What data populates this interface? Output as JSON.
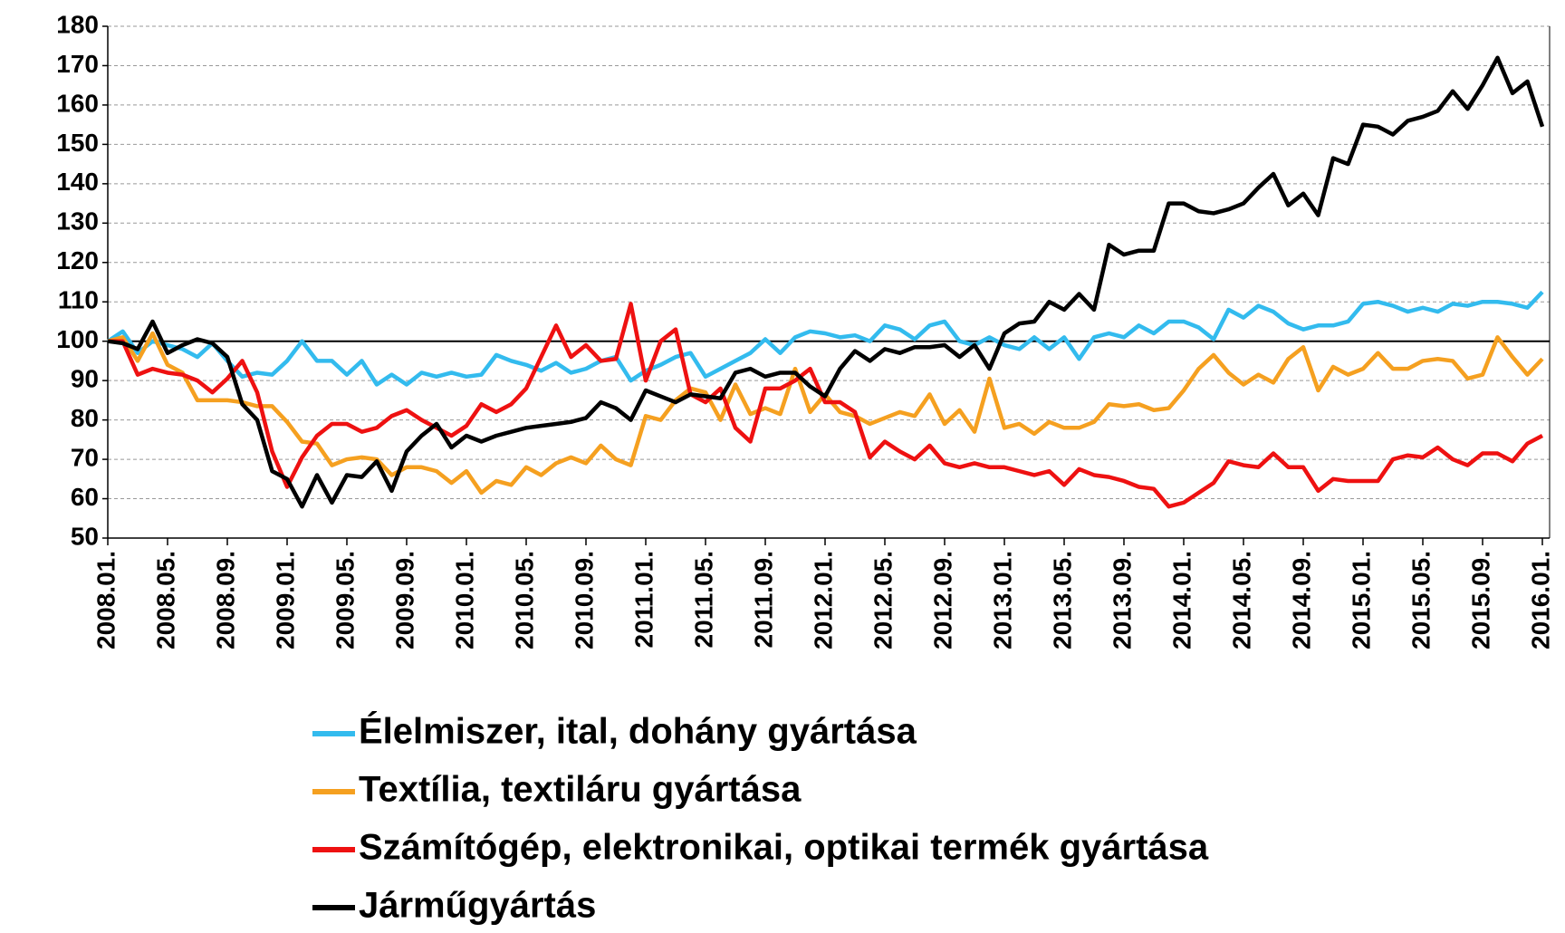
{
  "chart_data": {
    "type": "line",
    "categories": [
      "2008.01.",
      null,
      null,
      null,
      "2008.05.",
      null,
      null,
      null,
      "2008.09.",
      null,
      null,
      null,
      "2009.01.",
      null,
      null,
      null,
      "2009.05.",
      null,
      null,
      null,
      "2009.09.",
      null,
      null,
      null,
      "2010.01.",
      null,
      null,
      null,
      "2010.05.",
      null,
      null,
      null,
      "2010.09.",
      null,
      null,
      null,
      "2011.01.",
      null,
      null,
      null,
      "2011.05.",
      null,
      null,
      null,
      "2011.09.",
      null,
      null,
      null,
      "2012.01.",
      null,
      null,
      null,
      "2012.05.",
      null,
      null,
      null,
      "2012.09.",
      null,
      null,
      null,
      "2013.01.",
      null,
      null,
      null,
      "2013.05.",
      null,
      null,
      null,
      "2013.09.",
      null,
      null,
      null,
      "2014.01.",
      null,
      null,
      null,
      "2014.05.",
      null,
      null,
      null,
      "2014.09.",
      null,
      null,
      null,
      "2015.01.",
      null,
      null,
      null,
      "2015.05.",
      null,
      null,
      null,
      "2015.09.",
      null,
      null,
      null,
      "2016.01."
    ],
    "series": [
      {
        "name": "Élelmiszer, ital, dohány gyártása",
        "color": "#33bbee",
        "values": [
          100,
          102.5,
          97,
          100,
          99,
          98,
          96,
          99.5,
          95,
          91,
          92,
          91.5,
          95,
          100,
          95,
          95,
          91.5,
          95,
          89,
          91.5,
          89,
          92,
          91,
          92,
          91,
          91.5,
          96.5,
          95,
          94,
          92.5,
          94.5,
          92,
          93,
          95,
          96,
          90,
          92.5,
          94,
          96,
          97,
          91,
          93,
          95,
          97,
          100.5,
          97,
          101,
          102.5,
          102,
          101,
          101.5,
          100,
          104,
          103,
          100.5,
          104,
          105,
          100,
          99,
          101,
          99,
          98,
          101,
          98,
          101,
          95.5,
          101,
          102,
          101,
          104,
          102,
          105,
          105,
          103.5,
          100.5,
          108,
          106,
          109,
          107.5,
          104.5,
          103,
          104,
          104,
          105,
          109.5,
          110,
          109,
          107.5,
          108.5,
          107.5,
          109.5,
          109,
          110,
          110,
          109.5,
          108.5,
          112.5
        ]
      },
      {
        "name": "Textília, textiláru gyártása",
        "color": "#f5a020",
        "values": [
          100,
          101,
          95,
          102,
          94,
          92,
          85,
          85,
          85,
          84.5,
          83.5,
          83.5,
          79.5,
          74.5,
          74,
          68.5,
          70,
          70.5,
          70,
          66,
          68,
          68,
          67,
          64,
          67,
          61.5,
          64.5,
          63.5,
          68,
          66,
          69,
          70.5,
          69,
          73.5,
          70,
          68.5,
          81,
          80,
          85,
          88,
          87,
          80,
          89,
          81.5,
          83,
          81.5,
          93,
          82,
          86.5,
          82,
          81,
          79,
          80.5,
          82,
          81,
          86.5,
          79,
          82.5,
          77,
          90.5,
          78,
          79,
          76.5,
          79.5,
          78,
          78,
          79.5,
          84,
          83.5,
          84,
          82.5,
          83,
          87.5,
          93,
          96.5,
          92,
          89,
          91.5,
          89.5,
          95.5,
          98.5,
          87.5,
          93.5,
          91.5,
          93,
          97,
          93,
          93,
          95,
          95.5,
          95,
          90.5,
          91.5,
          101,
          96,
          91.5,
          95.5
        ]
      },
      {
        "name": "Számítógép, elektronikai, optikai termék gyártása",
        "color": "#ee1111",
        "values": [
          100,
          100,
          91.5,
          93,
          92,
          91.5,
          90,
          87,
          90.5,
          95,
          87,
          72,
          63,
          70.5,
          76,
          79,
          79,
          77,
          78,
          81,
          82.5,
          80,
          78,
          76,
          78.5,
          84,
          82,
          84,
          88,
          96,
          104,
          96,
          99,
          95,
          95.5,
          109.5,
          90,
          100,
          103,
          86.5,
          84.5,
          88,
          78,
          74.5,
          88,
          88,
          90,
          93,
          84.5,
          84.5,
          82,
          70.5,
          74.5,
          72,
          70,
          73.5,
          69,
          68,
          69,
          68,
          68,
          67,
          66,
          67,
          63.5,
          67.5,
          66,
          65.5,
          64.5,
          63,
          62.5,
          58,
          59,
          61.5,
          64,
          69.5,
          68.5,
          68,
          71.5,
          68,
          68,
          62,
          65,
          64.5,
          64.5,
          64.5,
          70,
          71,
          70.5,
          73,
          70,
          68.5,
          71.5,
          71.5,
          69.5,
          74,
          76
        ]
      },
      {
        "name": "Járműgyártás",
        "color": "#000000",
        "values": [
          100,
          99.5,
          98,
          105,
          97,
          99,
          100.5,
          99.5,
          96,
          84,
          80,
          67,
          65,
          58,
          66,
          59,
          66,
          65.5,
          69.5,
          62,
          72,
          76,
          79,
          73,
          76,
          74.5,
          76,
          77,
          78,
          78.5,
          79,
          79.5,
          80.5,
          84.5,
          83,
          80,
          87.5,
          86,
          84.5,
          86.5,
          86,
          85.5,
          92,
          93,
          91,
          92,
          92,
          88.5,
          86,
          93,
          97.5,
          95,
          98,
          97,
          98.5,
          98.5,
          99,
          96,
          99,
          93,
          102,
          104.5,
          105,
          110,
          108,
          112,
          108,
          124.5,
          122,
          123,
          123,
          135,
          135,
          133,
          132.5,
          133.5,
          135,
          139,
          142.5,
          134.5,
          137.5,
          132,
          146.5,
          145,
          155,
          154.5,
          152.5,
          156,
          157,
          158.5,
          163.5,
          159,
          165,
          172,
          163,
          166,
          154.5
        ]
      }
    ],
    "ylim": [
      50,
      180
    ],
    "yticks": [
      50,
      60,
      70,
      80,
      90,
      100,
      110,
      120,
      130,
      140,
      150,
      160,
      170,
      180
    ],
    "grid": true,
    "reference_line": 100
  }
}
